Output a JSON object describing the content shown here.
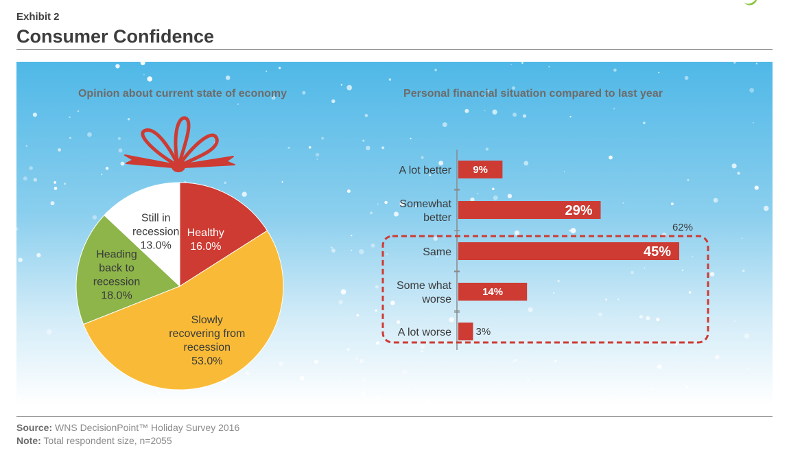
{
  "header": {
    "exhibit": "Exhibit 2",
    "title": "Consumer Confidence"
  },
  "footer": {
    "source_label": "Source:",
    "source_text": "WNS DecisionPoint™ Holiday Survey 2016",
    "note_label": "Note:",
    "note_text": "Total respondent size, n=2055"
  },
  "colors": {
    "red": "#cd3b33",
    "yellow": "#f9bb37",
    "green": "#8db54a",
    "white": "#ffffff",
    "sky": "#4fb8e7"
  },
  "chart_data": [
    {
      "type": "pie",
      "title": "Opinion about current state of economy",
      "slices": [
        {
          "label": [
            "Healthy",
            "16.0%"
          ],
          "value": 16.0,
          "color": "#cd3b33",
          "text_color": "#ffffff"
        },
        {
          "label": [
            "Slowly",
            "recovering from",
            "recession",
            "53.0%"
          ],
          "value": 53.0,
          "color": "#f9bb37",
          "text_color": "#3a3a3a"
        },
        {
          "label": [
            "Heading",
            "back to",
            "recession",
            "18.0%"
          ],
          "value": 18.0,
          "color": "#8db54a",
          "text_color": "#3a3a3a"
        },
        {
          "label": [
            "Still in",
            "recession",
            "13.0%"
          ],
          "value": 13.0,
          "color": "#ffffff",
          "text_color": "#3a3a3a"
        }
      ]
    },
    {
      "type": "bar",
      "orientation": "horizontal",
      "title": "Personal financial situation compared to last year",
      "categories": [
        [
          "A lot better"
        ],
        [
          "Somewhat",
          "better"
        ],
        [
          "Same"
        ],
        [
          "Some what",
          "worse"
        ],
        [
          "A lot worse"
        ]
      ],
      "values": [
        9,
        29,
        45,
        14,
        3
      ],
      "value_labels": [
        "9%",
        "29%",
        "45%",
        "14%",
        "3%"
      ],
      "bar_color": "#cd3b33",
      "xlim": [
        0,
        45
      ],
      "annotation": {
        "text": "62%",
        "covers_categories": [
          "Same",
          "Some what worse",
          "A lot worse"
        ]
      }
    }
  ]
}
